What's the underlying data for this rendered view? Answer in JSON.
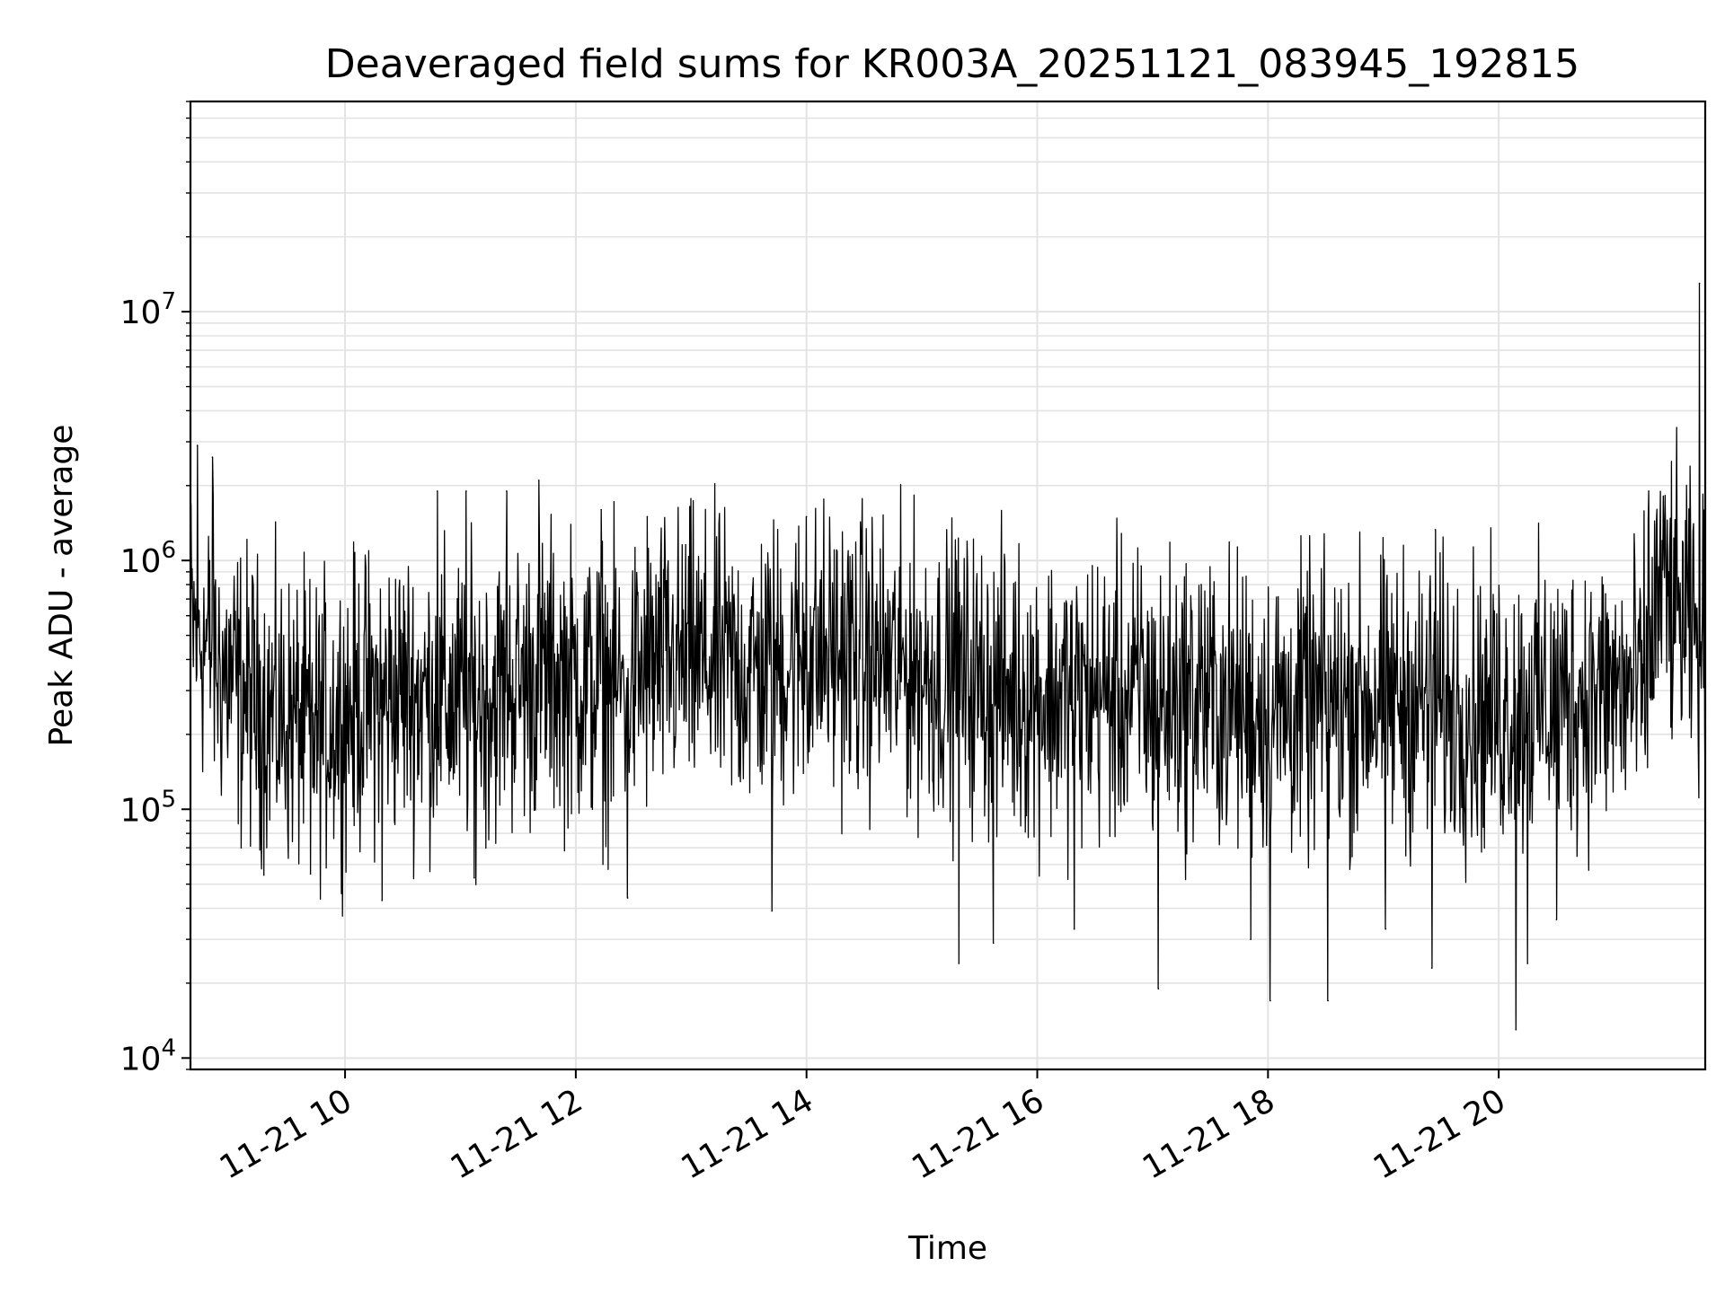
{
  "chart_data": {
    "type": "line",
    "title": "Deaveraged field sums for KR003A_20251121_083945_192815",
    "xlabel": "Time",
    "ylabel": "Peak ADU - average",
    "yscale": "log",
    "ylim": [
      9000,
      70000000
    ],
    "xlim_hours": [
      8.66,
      21.79
    ],
    "x_ticks": [
      {
        "value": 10,
        "label": "11-21 10"
      },
      {
        "value": 12,
        "label": "11-21 12"
      },
      {
        "value": 14,
        "label": "11-21 14"
      },
      {
        "value": 16,
        "label": "11-21 16"
      },
      {
        "value": 18,
        "label": "11-21 18"
      },
      {
        "value": 20,
        "label": "11-21 20"
      }
    ],
    "y_ticks": [
      {
        "value": 10000,
        "base": "10",
        "exp": "4"
      },
      {
        "value": 100000,
        "base": "10",
        "exp": "5"
      },
      {
        "value": 1000000,
        "base": "10",
        "exp": "6"
      },
      {
        "value": 10000000,
        "base": "10",
        "exp": "7"
      }
    ],
    "grid": true,
    "series_color": "#000000",
    "series": [
      {
        "name": "deaveraged field sum",
        "x_hours": [
          8.66,
          8.75,
          8.9,
          9.1,
          9.3,
          9.5,
          9.75,
          10.0,
          10.25,
          10.5,
          10.75,
          11.0,
          11.25,
          11.5,
          11.75,
          12.0,
          12.25,
          12.5,
          12.75,
          13.0,
          13.25,
          13.5,
          13.75,
          14.0,
          14.25,
          14.5,
          14.75,
          15.0,
          15.25,
          15.5,
          15.75,
          16.0,
          16.25,
          16.5,
          16.75,
          17.0,
          17.25,
          17.5,
          17.75,
          18.0,
          18.25,
          18.5,
          18.75,
          19.0,
          19.25,
          19.5,
          19.75,
          20.0,
          20.25,
          20.5,
          20.75,
          21.0,
          21.25,
          21.4,
          21.55,
          21.79
        ],
        "center": [
          550000,
          500000,
          380000,
          300000,
          250000,
          230000,
          210000,
          250000,
          280000,
          300000,
          280000,
          270000,
          290000,
          320000,
          350000,
          330000,
          300000,
          330000,
          380000,
          400000,
          380000,
          360000,
          380000,
          420000,
          430000,
          410000,
          380000,
          360000,
          340000,
          320000,
          300000,
          290000,
          280000,
          290000,
          280000,
          270000,
          280000,
          270000,
          260000,
          250000,
          250000,
          260000,
          270000,
          280000,
          270000,
          260000,
          250000,
          250000,
          260000,
          270000,
          290000,
          300000,
          300000,
          800000,
          600000,
          450000
        ],
        "spikes_hi": [
          {
            "x": 8.72,
            "y": 2900000
          },
          {
            "x": 8.85,
            "y": 2600000
          },
          {
            "x": 10.8,
            "y": 1900000
          },
          {
            "x": 11.05,
            "y": 1900000
          },
          {
            "x": 11.4,
            "y": 1900000
          },
          {
            "x": 11.68,
            "y": 2100000
          },
          {
            "x": 12.22,
            "y": 1600000
          },
          {
            "x": 12.62,
            "y": 1500000
          },
          {
            "x": 14.0,
            "y": 1500000
          },
          {
            "x": 15.3,
            "y": 1000000
          },
          {
            "x": 16.9,
            "y": 950000
          },
          {
            "x": 17.42,
            "y": 800000
          },
          {
            "x": 18.33,
            "y": 650000
          },
          {
            "x": 19.45,
            "y": 1330000
          },
          {
            "x": 21.3,
            "y": 1900000
          },
          {
            "x": 21.74,
            "y": 13000000
          }
        ],
        "spikes_lo": [
          {
            "x": 9.1,
            "y": 70000
          },
          {
            "x": 9.7,
            "y": 55000
          },
          {
            "x": 10.32,
            "y": 43000
          },
          {
            "x": 11.12,
            "y": 53000
          },
          {
            "x": 12.45,
            "y": 44000
          },
          {
            "x": 13.7,
            "y": 39000
          },
          {
            "x": 15.32,
            "y": 24000
          },
          {
            "x": 15.62,
            "y": 29000
          },
          {
            "x": 16.32,
            "y": 33000
          },
          {
            "x": 17.05,
            "y": 19000
          },
          {
            "x": 17.85,
            "y": 30000
          },
          {
            "x": 18.02,
            "y": 17000
          },
          {
            "x": 18.52,
            "y": 17000
          },
          {
            "x": 19.02,
            "y": 33000
          },
          {
            "x": 19.42,
            "y": 23000
          },
          {
            "x": 20.15,
            "y": 13000
          },
          {
            "x": 20.25,
            "y": 24000
          },
          {
            "x": 20.5,
            "y": 36000
          }
        ]
      }
    ]
  }
}
